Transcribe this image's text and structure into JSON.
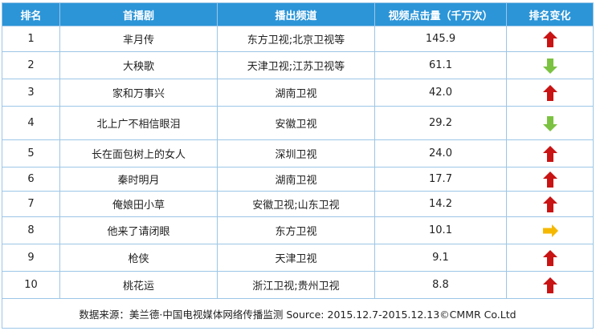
{
  "table": {
    "headers": [
      "排名",
      "首播剧",
      "播出频道",
      "视频点击量（千万次）",
      "排名变化"
    ],
    "rows": [
      {
        "rank": "1",
        "title": "芈月传",
        "channel": "东方卫视;北京卫视等",
        "clicks": "145.9",
        "change": "up"
      },
      {
        "rank": "2",
        "title": "大秧歌",
        "channel": "天津卫视;江苏卫视等",
        "clicks": "61.1",
        "change": "down"
      },
      {
        "rank": "3",
        "title": "家和万事兴",
        "channel": "湖南卫视",
        "clicks": "42.0",
        "change": "up"
      },
      {
        "rank": "4",
        "title": "北上广不相信眼泪",
        "channel": "安徽卫视",
        "clicks": "29.2",
        "change": "down"
      },
      {
        "rank": "5",
        "title": "长在面包树上的女人",
        "channel": "深圳卫视",
        "clicks": "24.0",
        "change": "up"
      },
      {
        "rank": "6",
        "title": "秦时明月",
        "channel": "湖南卫视",
        "clicks": "17.7",
        "change": "up"
      },
      {
        "rank": "7",
        "title": "俺娘田小草",
        "channel": "安徽卫视;山东卫视",
        "clicks": "14.2",
        "change": "up"
      },
      {
        "rank": "8",
        "title": "他来了请闭眼",
        "channel": "东方卫视",
        "clicks": "10.1",
        "change": "same"
      },
      {
        "rank": "9",
        "title": "枪侠",
        "channel": "天津卫视",
        "clicks": "9.1",
        "change": "up"
      },
      {
        "rank": "10",
        "title": "桃花运",
        "channel": "浙江卫视;贵州卫视",
        "clicks": "8.8",
        "change": "up"
      }
    ],
    "source": "数据来源：美兰德·中国电视媒体网络传播监测    Source: 2015.12.7-2015.12.13©CMMR   Co.Ltd"
  },
  "colors": {
    "header_bg": "#2c95d8",
    "grid_line": "#9cc6e6",
    "up": "#c81414",
    "down": "#7cc242",
    "same": "#f5b800"
  }
}
